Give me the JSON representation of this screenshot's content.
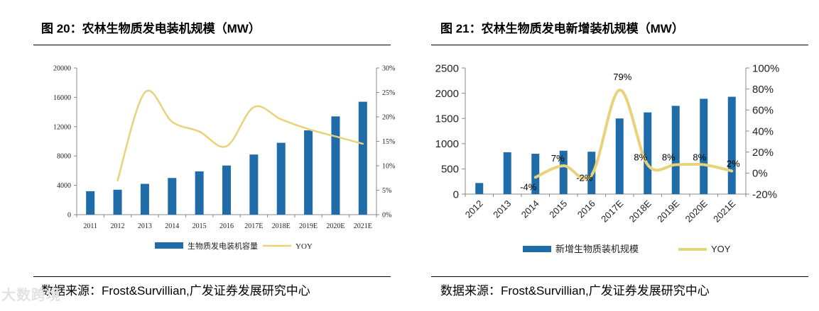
{
  "figures": [
    {
      "title": "图 20：农林生物质发电装机规模（MW）",
      "source": "数据来源：Frost&Survillian,广发证券发展研究中心"
    },
    {
      "title": "图 21：农林生物质发电新增装机规模（MW）",
      "source": "数据来源：Frost&Survillian,广发证券发展研究中心"
    }
  ],
  "watermark": "大数跨境",
  "colors": {
    "bar": "#1F6CA8",
    "line": "#E8D27A"
  },
  "chart_data": [
    {
      "type": "bar",
      "categories": [
        "2011",
        "2012",
        "2013",
        "2014",
        "2015",
        "2016",
        "2017E",
        "2018E",
        "2019E",
        "2020E",
        "2021E"
      ],
      "series": [
        {
          "name": "生物质发电装机容量",
          "type": "bar",
          "axis": "left",
          "values": [
            3200,
            3400,
            4200,
            5000,
            5900,
            6700,
            8200,
            9800,
            11500,
            13400,
            15400
          ]
        },
        {
          "name": "YOY",
          "type": "line",
          "axis": "right",
          "values": [
            null,
            7,
            25,
            19,
            17,
            14,
            22,
            19.5,
            17.5,
            16,
            14.5
          ]
        }
      ],
      "yleft": {
        "min": 0,
        "max": 20000,
        "ticks": [
          0,
          4000,
          8000,
          12000,
          16000,
          20000
        ],
        "labels": [
          "0",
          "4000",
          "8000",
          "12000",
          "16000",
          "20000"
        ]
      },
      "yright": {
        "min": 0,
        "max": 30,
        "ticks": [
          0,
          5,
          10,
          15,
          20,
          25,
          30
        ],
        "labels": [
          "0%",
          "5%",
          "10%",
          "15%",
          "20%",
          "25%",
          "30%"
        ]
      },
      "legend": [
        "生物质发电装机容量",
        "YOY"
      ],
      "data_labels": []
    },
    {
      "type": "bar",
      "categories": [
        "2012",
        "2013",
        "2014",
        "2015",
        "2016",
        "2017E",
        "2018E",
        "2019E",
        "2020E",
        "2021E"
      ],
      "series": [
        {
          "name": "新增生物质装机规模",
          "type": "bar",
          "axis": "left",
          "values": [
            220,
            830,
            800,
            860,
            840,
            1500,
            1620,
            1750,
            1890,
            1930
          ]
        },
        {
          "name": "YOY",
          "type": "line",
          "axis": "right",
          "values": [
            null,
            null,
            -4,
            7,
            -2,
            79,
            8,
            8,
            8,
            2
          ]
        }
      ],
      "yleft": {
        "min": 0,
        "max": 2500,
        "ticks": [
          0,
          500,
          1000,
          1500,
          2000,
          2500
        ],
        "labels": [
          "0",
          "500",
          "1000",
          "1500",
          "2000",
          "2500"
        ]
      },
      "yright": {
        "min": -20,
        "max": 100,
        "ticks": [
          -20,
          0,
          20,
          40,
          60,
          80,
          100
        ],
        "labels": [
          "-20%",
          "0%",
          "20%",
          "40%",
          "60%",
          "80%",
          "100%"
        ]
      },
      "legend": [
        "新增生物质装机规模",
        "YOY"
      ],
      "data_labels": [
        {
          "index": 2,
          "text": "-4%"
        },
        {
          "index": 3,
          "text": "7%"
        },
        {
          "index": 4,
          "text": "-2%"
        },
        {
          "index": 5,
          "text": "79%"
        },
        {
          "index": 6,
          "text": "8%"
        },
        {
          "index": 7,
          "text": "8%"
        },
        {
          "index": 8,
          "text": "8%"
        },
        {
          "index": 9,
          "text": "2%"
        }
      ]
    }
  ]
}
